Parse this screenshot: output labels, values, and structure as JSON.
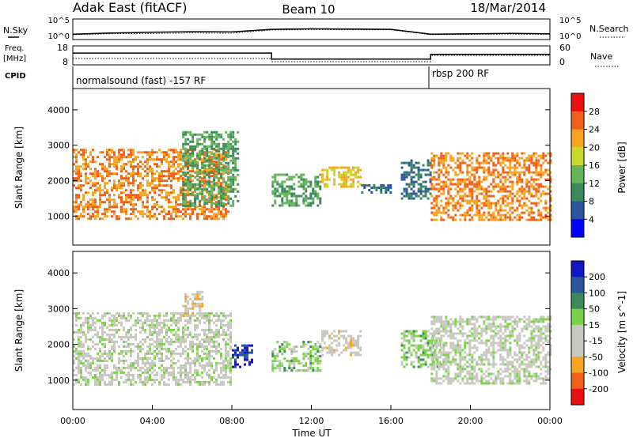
{
  "header": {
    "station": "Adak East (fitACF)",
    "beam": "Beam 10",
    "date": "18/Mar/2014"
  },
  "strip_labels": {
    "nsky": "N.Sky",
    "nsearch": "N.Search",
    "freq_line1": "Freq.",
    "freq_line2": "[MHz]",
    "nave": "Nave",
    "cpid": "CPID"
  },
  "strip_ticks": {
    "nsky_left": [
      "10^5",
      "10^0"
    ],
    "nsky_right": [
      "10^5",
      "10^0"
    ],
    "freq_left": [
      "18",
      "8"
    ],
    "nave_right": [
      "60",
      "0"
    ]
  },
  "cpid_labels": [
    {
      "text": "normalsound (fast) -157 RF",
      "start_hour": 0
    },
    {
      "text": "rbsp 200 RF",
      "start_hour": 18
    }
  ],
  "colors": {
    "power": [
      "#0000ff",
      "#2b55a0",
      "#3a8a5a",
      "#66b45a",
      "#c8d82a",
      "#f7a520",
      "#f06018",
      "#e81010"
    ],
    "velocity": [
      "#e81010",
      "#f06018",
      "#f7a520",
      "#c8c8c0",
      "#c8c8c0",
      "#7ad246",
      "#3a8a5a",
      "#2b55a0",
      "#1414c8"
    ]
  },
  "chart_data": [
    {
      "type": "line",
      "name": "nsky-nsearch-strip",
      "ylabel_left": "N.Sky",
      "ylabel_right": "N.Search",
      "yscale": "log",
      "ylim": [
        1,
        100000
      ],
      "xlim": [
        0,
        24
      ],
      "series": [
        {
          "name": "N.Sky",
          "x": [
            0,
            2,
            4,
            6,
            8,
            10,
            12,
            14,
            16,
            18,
            20,
            22,
            24
          ],
          "y": [
            20,
            40,
            60,
            80,
            70,
            300,
            400,
            350,
            300,
            20,
            25,
            30,
            25
          ]
        },
        {
          "name": "N.Search",
          "x": [
            0,
            2,
            4,
            6,
            8,
            10,
            12,
            14,
            16,
            18,
            20,
            22,
            24
          ],
          "y": [
            15,
            25,
            30,
            40,
            35,
            200,
            250,
            240,
            220,
            15,
            18,
            20,
            18
          ]
        }
      ]
    },
    {
      "type": "line",
      "name": "freq-nave-strip",
      "ylabel_left": "Freq. [MHz]",
      "ylabel_right": "Nave",
      "freq_ylim": [
        8,
        18
      ],
      "nave_ylim": [
        0,
        60
      ],
      "xlim": [
        0,
        24
      ],
      "series": [
        {
          "name": "Freq.",
          "x": [
            0,
            10,
            10,
            18,
            18,
            24
          ],
          "y": [
            14.2,
            14.2,
            11,
            11,
            13.5,
            13.5
          ]
        },
        {
          "name": "Nave",
          "x": [
            0,
            10,
            10,
            18,
            18,
            24
          ],
          "y": [
            20,
            20,
            10,
            10,
            30,
            30
          ]
        }
      ]
    },
    {
      "type": "heatmap",
      "name": "power",
      "ylabel": "Slant Range [km]",
      "yticks": [
        1000,
        2000,
        3000,
        4000
      ],
      "ylim": [
        180,
        4600
      ],
      "xlim": [
        0,
        24
      ],
      "colorbar_label": "Power [dB]",
      "colorbar_ticks": [
        "28",
        "24",
        "20",
        "16",
        "12",
        "8",
        "4"
      ],
      "colorbar_range": [
        0,
        32
      ],
      "regions": [
        {
          "t0": 0,
          "t1": 7.8,
          "r0": 950,
          "r1": 2900,
          "value": 24
        },
        {
          "t0": 5.5,
          "t1": 8.3,
          "r0": 1300,
          "r1": 3400,
          "value": 12
        },
        {
          "t0": 10,
          "t1": 12.5,
          "r0": 1300,
          "r1": 2200,
          "value": 12
        },
        {
          "t0": 12.5,
          "t1": 14.5,
          "r0": 1800,
          "r1": 2400,
          "value": 20
        },
        {
          "t0": 14.5,
          "t1": 16,
          "r0": 1650,
          "r1": 1900,
          "value": 8
        },
        {
          "t0": 16.5,
          "t1": 18,
          "r0": 1500,
          "r1": 2600,
          "value": 8
        },
        {
          "t0": 18,
          "t1": 24,
          "r0": 900,
          "r1": 2800,
          "value": 24
        }
      ]
    },
    {
      "type": "heatmap",
      "name": "velocity",
      "ylabel": "Slant Range [km]",
      "xlabel": "Time UT",
      "xticks": [
        "00:00",
        "04:00",
        "08:00",
        "12:00",
        "16:00",
        "20:00",
        "00:00"
      ],
      "yticks": [
        1000,
        2000,
        3000,
        4000
      ],
      "ylim": [
        180,
        4600
      ],
      "xlim": [
        0,
        24
      ],
      "colorbar_label": "Velocity [m s^-1]",
      "colorbar_ticks": [
        "200",
        "100",
        "50",
        "15",
        "-15",
        "-50",
        "-100",
        "-200"
      ],
      "colorbar_range": [
        -250,
        250
      ],
      "regions": [
        {
          "t0": 0,
          "t1": 8,
          "r0": 900,
          "r1": 2900,
          "value": 0
        },
        {
          "t0": 5.5,
          "t1": 6.5,
          "r0": 2800,
          "r1": 3500,
          "value": -60
        },
        {
          "t0": 8,
          "t1": 9,
          "r0": 1400,
          "r1": 2000,
          "value": 200
        },
        {
          "t0": 10,
          "t1": 12.5,
          "r0": 1300,
          "r1": 2100,
          "value": 50
        },
        {
          "t0": 12.5,
          "t1": 14.5,
          "r0": 1700,
          "r1": 2400,
          "value": -50
        },
        {
          "t0": 16.5,
          "t1": 18.5,
          "r0": 1400,
          "r1": 2400,
          "value": 50
        },
        {
          "t0": 18,
          "t1": 24,
          "r0": 900,
          "r1": 2800,
          "value": 0
        }
      ]
    }
  ]
}
